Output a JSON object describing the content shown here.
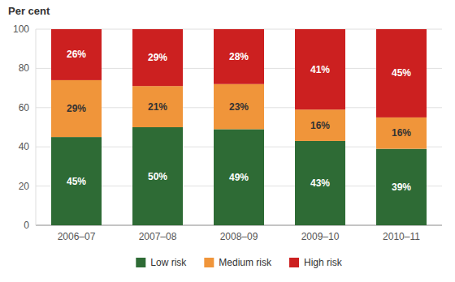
{
  "chart_data": {
    "type": "bar",
    "title": "Per cent",
    "categories": [
      "2006–07",
      "2007–08",
      "2008–09",
      "2009–10",
      "2010–11"
    ],
    "series": [
      {
        "name": "Low risk",
        "color": "#2e6b35",
        "values": [
          45,
          50,
          49,
          43,
          39
        ],
        "value_labels": [
          "45%",
          "50%",
          "49%",
          "43%",
          "39%"
        ]
      },
      {
        "name": "Medium risk",
        "color": "#f0953a",
        "values": [
          29,
          21,
          23,
          16,
          16
        ],
        "value_labels": [
          "29%",
          "21%",
          "23%",
          "16%",
          "16%"
        ]
      },
      {
        "name": "High risk",
        "color": "#cc2020",
        "values": [
          26,
          29,
          28,
          41,
          45
        ],
        "value_labels": [
          "26%",
          "29%",
          "28%",
          "41%",
          "45%"
        ]
      }
    ],
    "stacked": true,
    "ylim": [
      0,
      100
    ],
    "yticks": [
      0,
      20,
      40,
      60,
      80,
      100
    ],
    "grid": true,
    "legend": "bottom",
    "data_labels": true
  }
}
